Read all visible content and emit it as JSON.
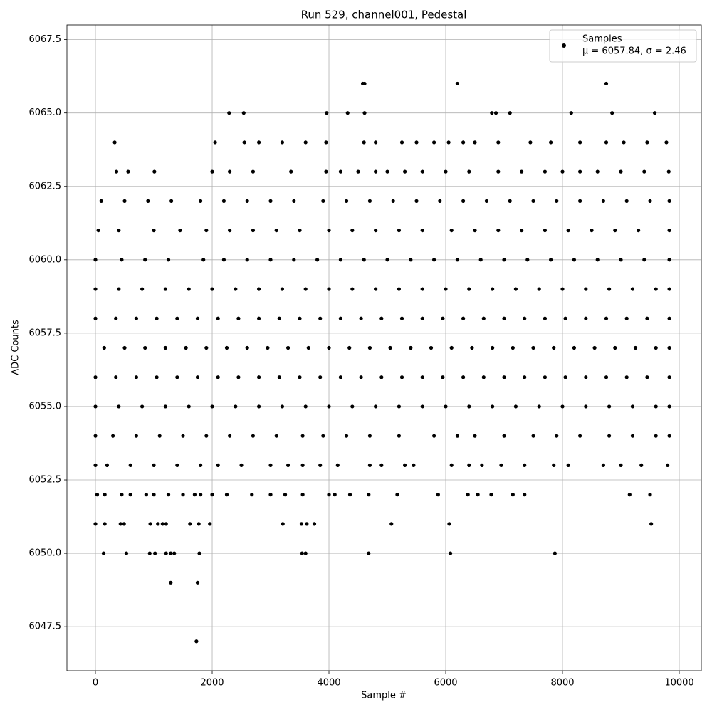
{
  "chart_data": {
    "type": "scatter",
    "title": "Run 529, channel001, Pedestal",
    "x_label": "Sample #",
    "y_label": "ADC Counts",
    "xlim": [
      -488,
      10378
    ],
    "ylim": [
      6046.0,
      6068.0
    ],
    "xticks": [
      0,
      2000,
      4000,
      6000,
      8000,
      10000
    ],
    "yticks": [
      6047.5,
      {
        "value": 6050,
        "label": "6050.0"
      },
      6052.5,
      {
        "value": 6055,
        "label": "6055.0"
      },
      6057.5,
      {
        "value": 6060,
        "label": "6060.0"
      },
      6062.5,
      {
        "value": 6065,
        "label": "6065.0"
      },
      6067.5
    ],
    "grid": true,
    "legend": "upper right",
    "legend_note": "μ = 6057.84, σ = 2.46",
    "x": [
      1730,
      1290,
      1750,
      140,
      530,
      930,
      1020,
      1210,
      1290,
      1350,
      1780,
      3540,
      3600,
      4680,
      6080,
      7870,
      0,
      160,
      430,
      490,
      940,
      1070,
      1150,
      1210,
      1620,
      1770,
      1960,
      3210,
      3530,
      3620,
      3750,
      5070,
      6060,
      9520,
      30,
      160,
      450,
      600,
      870,
      1000,
      1250,
      1500,
      1700,
      1800,
      2000,
      2250,
      2680,
      3000,
      3250,
      3550,
      4000,
      4100,
      4360,
      4680,
      5170,
      5870,
      6380,
      6550,
      6780,
      7150,
      7350,
      9150,
      9500,
      0,
      200,
      600,
      1000,
      1400,
      1800,
      2100,
      2500,
      3000,
      3300,
      3550,
      3850,
      4150,
      4700,
      4900,
      5300,
      5450,
      6100,
      6400,
      6620,
      6950,
      7350,
      7850,
      8100,
      8700,
      9000,
      9350,
      9800,
      0,
      300,
      700,
      1100,
      1500,
      1900,
      2300,
      2700,
      3100,
      3550,
      3900,
      4300,
      4700,
      5200,
      5800,
      6200,
      6500,
      7000,
      7500,
      7900,
      8300,
      8800,
      9200,
      9600,
      9830,
      0,
      400,
      800,
      1200,
      1600,
      2000,
      2400,
      2800,
      3200,
      3600,
      4000,
      4400,
      4800,
      5200,
      5600,
      6000,
      6400,
      6800,
      7200,
      7600,
      8000,
      8400,
      8800,
      9200,
      9600,
      9830,
      0,
      350,
      700,
      1050,
      1400,
      1750,
      2100,
      2450,
      2800,
      3150,
      3500,
      3850,
      4200,
      4550,
      4900,
      5250,
      5600,
      5950,
      6300,
      6650,
      7000,
      7350,
      7700,
      8050,
      8400,
      8750,
      9100,
      9450,
      9830,
      150,
      500,
      850,
      1200,
      1550,
      1900,
      2250,
      2600,
      2950,
      3300,
      3650,
      4000,
      4350,
      4700,
      5050,
      5400,
      5750,
      6100,
      6450,
      6800,
      7150,
      7500,
      7850,
      8200,
      8550,
      8900,
      9250,
      9600,
      9830,
      0,
      350,
      700,
      1050,
      1400,
      1750,
      2100,
      2450,
      2800,
      3150,
      3500,
      3850,
      4200,
      4550,
      4900,
      5250,
      5600,
      5950,
      6300,
      6650,
      7000,
      7350,
      7700,
      8050,
      8400,
      8750,
      9100,
      9450,
      9830,
      0,
      400,
      800,
      1200,
      1600,
      2000,
      2400,
      2800,
      3200,
      3600,
      4000,
      4400,
      4800,
      5200,
      5600,
      6000,
      6400,
      6800,
      7200,
      7600,
      8000,
      8400,
      8800,
      9200,
      9600,
      9830,
      0,
      450,
      850,
      1250,
      1850,
      2200,
      2600,
      3000,
      3400,
      3800,
      4200,
      4600,
      5000,
      5400,
      5800,
      6200,
      6600,
      7000,
      7400,
      7800,
      8200,
      8600,
      9000,
      9400,
      9830,
      50,
      400,
      1000,
      1450,
      1900,
      2300,
      2700,
      3100,
      3500,
      4000,
      4400,
      4800,
      5200,
      5600,
      6100,
      6500,
      6900,
      7300,
      7700,
      8100,
      8500,
      8900,
      9300,
      9830,
      100,
      500,
      900,
      1300,
      1800,
      2200,
      2600,
      3000,
      3400,
      3900,
      4300,
      4700,
      5100,
      5500,
      5900,
      6300,
      6700,
      7100,
      7500,
      7900,
      8300,
      8700,
      9100,
      9500,
      9830,
      360,
      560,
      1010,
      2000,
      2300,
      2700,
      3350,
      3950,
      4200,
      4500,
      4800,
      5000,
      5300,
      5600,
      6000,
      6400,
      6900,
      7300,
      7700,
      8000,
      8300,
      8600,
      9000,
      9400,
      9820,
      330,
      2050,
      2550,
      2800,
      3200,
      3600,
      3950,
      4600,
      4800,
      5250,
      5500,
      5800,
      6050,
      6300,
      6500,
      6900,
      7450,
      7800,
      8300,
      8750,
      9050,
      9450,
      9780,
      2290,
      2540,
      3960,
      4320,
      4610,
      6790,
      6860,
      7100,
      8150,
      8850,
      9580,
      4580,
      4610,
      6200,
      8750
    ],
    "series": [
      {
        "name": "Samples",
        "color": "#000000",
        "values": [
          6047,
          6049,
          6049,
          6050,
          6050,
          6050,
          6050,
          6050,
          6050,
          6050,
          6050,
          6050,
          6050,
          6050,
          6050,
          6050,
          6051,
          6051,
          6051,
          6051,
          6051,
          6051,
          6051,
          6051,
          6051,
          6051,
          6051,
          6051,
          6051,
          6051,
          6051,
          6051,
          6051,
          6051,
          6052,
          6052,
          6052,
          6052,
          6052,
          6052,
          6052,
          6052,
          6052,
          6052,
          6052,
          6052,
          6052,
          6052,
          6052,
          6052,
          6052,
          6052,
          6052,
          6052,
          6052,
          6052,
          6052,
          6052,
          6052,
          6052,
          6052,
          6052,
          6052,
          6053,
          6053,
          6053,
          6053,
          6053,
          6053,
          6053,
          6053,
          6053,
          6053,
          6053,
          6053,
          6053,
          6053,
          6053,
          6053,
          6053,
          6053,
          6053,
          6053,
          6053,
          6053,
          6053,
          6053,
          6053,
          6053,
          6053,
          6053,
          6054,
          6054,
          6054,
          6054,
          6054,
          6054,
          6054,
          6054,
          6054,
          6054,
          6054,
          6054,
          6054,
          6054,
          6054,
          6054,
          6054,
          6054,
          6054,
          6054,
          6054,
          6054,
          6054,
          6054,
          6054,
          6055,
          6055,
          6055,
          6055,
          6055,
          6055,
          6055,
          6055,
          6055,
          6055,
          6055,
          6055,
          6055,
          6055,
          6055,
          6055,
          6055,
          6055,
          6055,
          6055,
          6055,
          6055,
          6055,
          6055,
          6055,
          6055,
          6056,
          6056,
          6056,
          6056,
          6056,
          6056,
          6056,
          6056,
          6056,
          6056,
          6056,
          6056,
          6056,
          6056,
          6056,
          6056,
          6056,
          6056,
          6056,
          6056,
          6056,
          6056,
          6056,
          6056,
          6056,
          6056,
          6056,
          6056,
          6056,
          6057,
          6057,
          6057,
          6057,
          6057,
          6057,
          6057,
          6057,
          6057,
          6057,
          6057,
          6057,
          6057,
          6057,
          6057,
          6057,
          6057,
          6057,
          6057,
          6057,
          6057,
          6057,
          6057,
          6057,
          6057,
          6057,
          6057,
          6057,
          6057,
          6058,
          6058,
          6058,
          6058,
          6058,
          6058,
          6058,
          6058,
          6058,
          6058,
          6058,
          6058,
          6058,
          6058,
          6058,
          6058,
          6058,
          6058,
          6058,
          6058,
          6058,
          6058,
          6058,
          6058,
          6058,
          6058,
          6058,
          6058,
          6058,
          6059,
          6059,
          6059,
          6059,
          6059,
          6059,
          6059,
          6059,
          6059,
          6059,
          6059,
          6059,
          6059,
          6059,
          6059,
          6059,
          6059,
          6059,
          6059,
          6059,
          6059,
          6059,
          6059,
          6059,
          6059,
          6059,
          6060,
          6060,
          6060,
          6060,
          6060,
          6060,
          6060,
          6060,
          6060,
          6060,
          6060,
          6060,
          6060,
          6060,
          6060,
          6060,
          6060,
          6060,
          6060,
          6060,
          6060,
          6060,
          6060,
          6060,
          6060,
          6061,
          6061,
          6061,
          6061,
          6061,
          6061,
          6061,
          6061,
          6061,
          6061,
          6061,
          6061,
          6061,
          6061,
          6061,
          6061,
          6061,
          6061,
          6061,
          6061,
          6061,
          6061,
          6061,
          6061,
          6062,
          6062,
          6062,
          6062,
          6062,
          6062,
          6062,
          6062,
          6062,
          6062,
          6062,
          6062,
          6062,
          6062,
          6062,
          6062,
          6062,
          6062,
          6062,
          6062,
          6062,
          6062,
          6062,
          6062,
          6062,
          6063,
          6063,
          6063,
          6063,
          6063,
          6063,
          6063,
          6063,
          6063,
          6063,
          6063,
          6063,
          6063,
          6063,
          6063,
          6063,
          6063,
          6063,
          6063,
          6063,
          6063,
          6063,
          6063,
          6063,
          6063,
          6064,
          6064,
          6064,
          6064,
          6064,
          6064,
          6064,
          6064,
          6064,
          6064,
          6064,
          6064,
          6064,
          6064,
          6064,
          6064,
          6064,
          6064,
          6064,
          6064,
          6064,
          6064,
          6064,
          6065,
          6065,
          6065,
          6065,
          6065,
          6065,
          6065,
          6065,
          6065,
          6065,
          6065,
          6066,
          6066,
          6066,
          6066
        ]
      }
    ]
  }
}
